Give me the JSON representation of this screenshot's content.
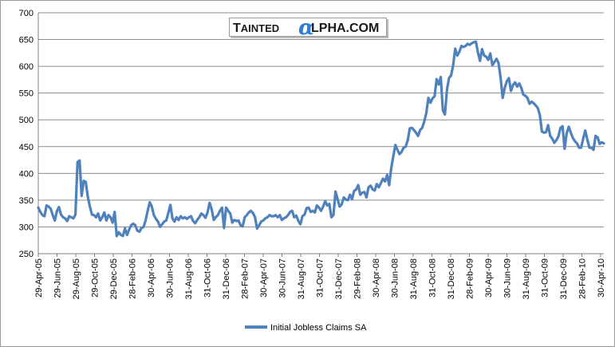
{
  "watermark": {
    "left": "Tainted",
    "alpha": "α",
    "right": "lpha.com"
  },
  "chart_data": {
    "type": "line",
    "xlabel": "",
    "ylabel": "",
    "ylim": [
      250,
      700
    ],
    "yticks": [
      250,
      300,
      350,
      400,
      450,
      500,
      550,
      600,
      650,
      700
    ],
    "xticks": [
      "29-Apr-05",
      "29-Jun-05",
      "29-Aug-05",
      "29-Oct-05",
      "29-Dec-05",
      "28-Feb-06",
      "30-Apr-06",
      "30-Jun-06",
      "31-Aug-06",
      "31-Oct-06",
      "31-Dec-06",
      "28-Feb-07",
      "30-Apr-07",
      "30-Jun-07",
      "31-Aug-07",
      "31-Oct-07",
      "31-Dec-07",
      "29-Feb-08",
      "30-Apr-08",
      "30-Jun-08",
      "31-Aug-08",
      "31-Oct-08",
      "31-Dec-08",
      "28-Feb-09",
      "30-Apr-09",
      "30-Jun-09",
      "31-Aug-09",
      "31-Oct-09",
      "31-Dec-09",
      "28-Feb-10",
      "30-Apr-10"
    ],
    "grid": "horizontal",
    "legend_position": "bottom",
    "series_color": "#4f81bd",
    "series": [
      {
        "name": "Initial Jobless Claims SA",
        "values": [
          336,
          328,
          322,
          320,
          340,
          338,
          334,
          322,
          312,
          329,
          337,
          323,
          318,
          316,
          311,
          320,
          318,
          316,
          323,
          421,
          424,
          358,
          386,
          384,
          356,
          338,
          323,
          322,
          318,
          325,
          312,
          318,
          327,
          312,
          322,
          318,
          308,
          328,
          283,
          290,
          285,
          283,
          297,
          285,
          295,
          303,
          306,
          303,
          293,
          291,
          298,
          300,
          312,
          330,
          346,
          338,
          322,
          315,
          310,
          300,
          305,
          310,
          312,
          326,
          341,
          316,
          310,
          318,
          313,
          320,
          316,
          318,
          315,
          318,
          320,
          311,
          307,
          313,
          318,
          325,
          322,
          317,
          327,
          345,
          333,
          313,
          318,
          322,
          330,
          336,
          298,
          336,
          330,
          325,
          308,
          313,
          311,
          312,
          303,
          301,
          318,
          322,
          327,
          330,
          326,
          318,
          297,
          303,
          310,
          312,
          316,
          318,
          322,
          320,
          320,
          322,
          318,
          322,
          313,
          316,
          318,
          322,
          328,
          330,
          318,
          321,
          311,
          305,
          320,
          323,
          335,
          336,
          328,
          330,
          327,
          340,
          336,
          330,
          338,
          348,
          340,
          343,
          318,
          322,
          366,
          352,
          338,
          342,
          355,
          351,
          350,
          360,
          352,
          367,
          370,
          378,
          360,
          364,
          365,
          355,
          374,
          377,
          370,
          368,
          380,
          374,
          382,
          390,
          385,
          397,
          378,
          410,
          432,
          453,
          444,
          436,
          440,
          448,
          450,
          462,
          484,
          485,
          481,
          476,
          470,
          481,
          485,
          497,
          513,
          541,
          532,
          540,
          544,
          576,
          566,
          580,
          518,
          510,
          556,
          578,
          583,
          602,
          633,
          620,
          627,
          638,
          636,
          638,
          642,
          640,
          643,
          645,
          646,
          626,
          610,
          632,
          620,
          618,
          612,
          624,
          602,
          608,
          614,
          606,
          578,
          541,
          560,
          572,
          578,
          554,
          565,
          570,
          562,
          568,
          560,
          547,
          545,
          541,
          530,
          534,
          531,
          527,
          522,
          509,
          478,
          476,
          477,
          490,
          470,
          465,
          457,
          462,
          469,
          485,
          488,
          446,
          475,
          487,
          476,
          466,
          460,
          456,
          448,
          448,
          465,
          480,
          463,
          448,
          448,
          444,
          470,
          467,
          455,
          458,
          456
        ]
      }
    ]
  }
}
